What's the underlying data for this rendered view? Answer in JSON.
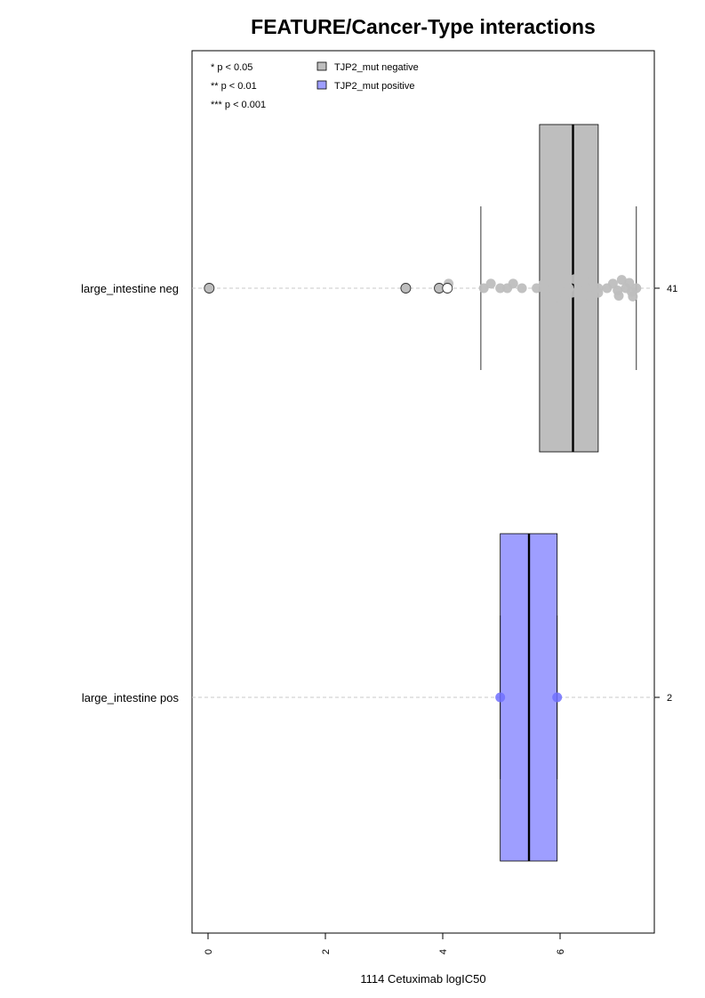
{
  "chart_data": {
    "type": "box",
    "title": "FEATURE/Cancer-Type interactions",
    "xlabel": "1114 Cetuximab logIC50",
    "xlim": [
      -0.3,
      7.6
    ],
    "xticks": [
      0,
      2,
      4,
      6
    ],
    "xtick_labels": [
      "0",
      "2",
      "4",
      "6"
    ],
    "grid": false,
    "significance_legend": [
      "* p < 0.05",
      "** p < 0.01",
      "*** p < 0.001"
    ],
    "legend": [
      {
        "label": "TJP2_mut negative",
        "color": "#bebebe"
      },
      {
        "label": "TJP2_mut positive",
        "color": "#9e9eff"
      }
    ],
    "legend_position": "top-left",
    "groups": [
      {
        "label": "large_intestine neg",
        "n_label": "41",
        "color": "#bebebe",
        "point_color": "#bebebe",
        "whisker_low": 4.65,
        "q1": 5.65,
        "median": 6.22,
        "q3": 6.65,
        "whisker_high": 7.3,
        "outliers": [
          0.02,
          3.37,
          3.94
        ],
        "open_points": [
          4.08
        ],
        "points": [
          {
            "x": 4.1,
            "j": 0.6
          },
          {
            "x": 4.7,
            "j": 0.0
          },
          {
            "x": 4.82,
            "j": 0.6
          },
          {
            "x": 4.98,
            "j": 0.0
          },
          {
            "x": 5.1,
            "j": 0.0
          },
          {
            "x": 5.2,
            "j": 0.6
          },
          {
            "x": 5.35,
            "j": 0.0
          },
          {
            "x": 5.6,
            "j": 0.0
          },
          {
            "x": 5.72,
            "j": 0.6
          },
          {
            "x": 5.75,
            "j": -0.6
          },
          {
            "x": 5.82,
            "j": 1.2
          },
          {
            "x": 5.88,
            "j": 0.0
          },
          {
            "x": 5.92,
            "j": -1.2
          },
          {
            "x": 5.95,
            "j": -0.6
          },
          {
            "x": 6.1,
            "j": 0.6
          },
          {
            "x": 6.15,
            "j": 0.0
          },
          {
            "x": 6.2,
            "j": -0.6
          },
          {
            "x": 6.25,
            "j": 1.2
          },
          {
            "x": 6.32,
            "j": 0.6
          },
          {
            "x": 6.35,
            "j": -0.6
          },
          {
            "x": 6.4,
            "j": 1.6
          },
          {
            "x": 6.45,
            "j": 0.0
          },
          {
            "x": 6.5,
            "j": -1.0
          },
          {
            "x": 6.55,
            "j": 1.0
          },
          {
            "x": 6.65,
            "j": 0.0
          },
          {
            "x": 6.65,
            "j": -0.6
          },
          {
            "x": 6.8,
            "j": 0.0
          },
          {
            "x": 6.9,
            "j": 0.6
          },
          {
            "x": 6.98,
            "j": -0.3
          },
          {
            "x": 7.0,
            "j": -1.0
          },
          {
            "x": 7.05,
            "j": 1.1
          },
          {
            "x": 7.12,
            "j": 0.0
          },
          {
            "x": 7.18,
            "j": 0.7
          },
          {
            "x": 7.22,
            "j": -0.5
          },
          {
            "x": 7.24,
            "j": -1.1
          },
          {
            "x": 7.3,
            "j": 0.0
          }
        ]
      },
      {
        "label": "large_intestine pos",
        "n_label": "2",
        "color": "#9e9eff",
        "point_color": "#7070ff",
        "whisker_low": 4.98,
        "q1": 4.98,
        "median": 5.47,
        "q3": 5.95,
        "whisker_high": 5.95,
        "outliers": [],
        "open_points": [],
        "points": [
          {
            "x": 4.98,
            "j": 0.0
          },
          {
            "x": 5.95,
            "j": 0.0
          }
        ]
      }
    ]
  }
}
